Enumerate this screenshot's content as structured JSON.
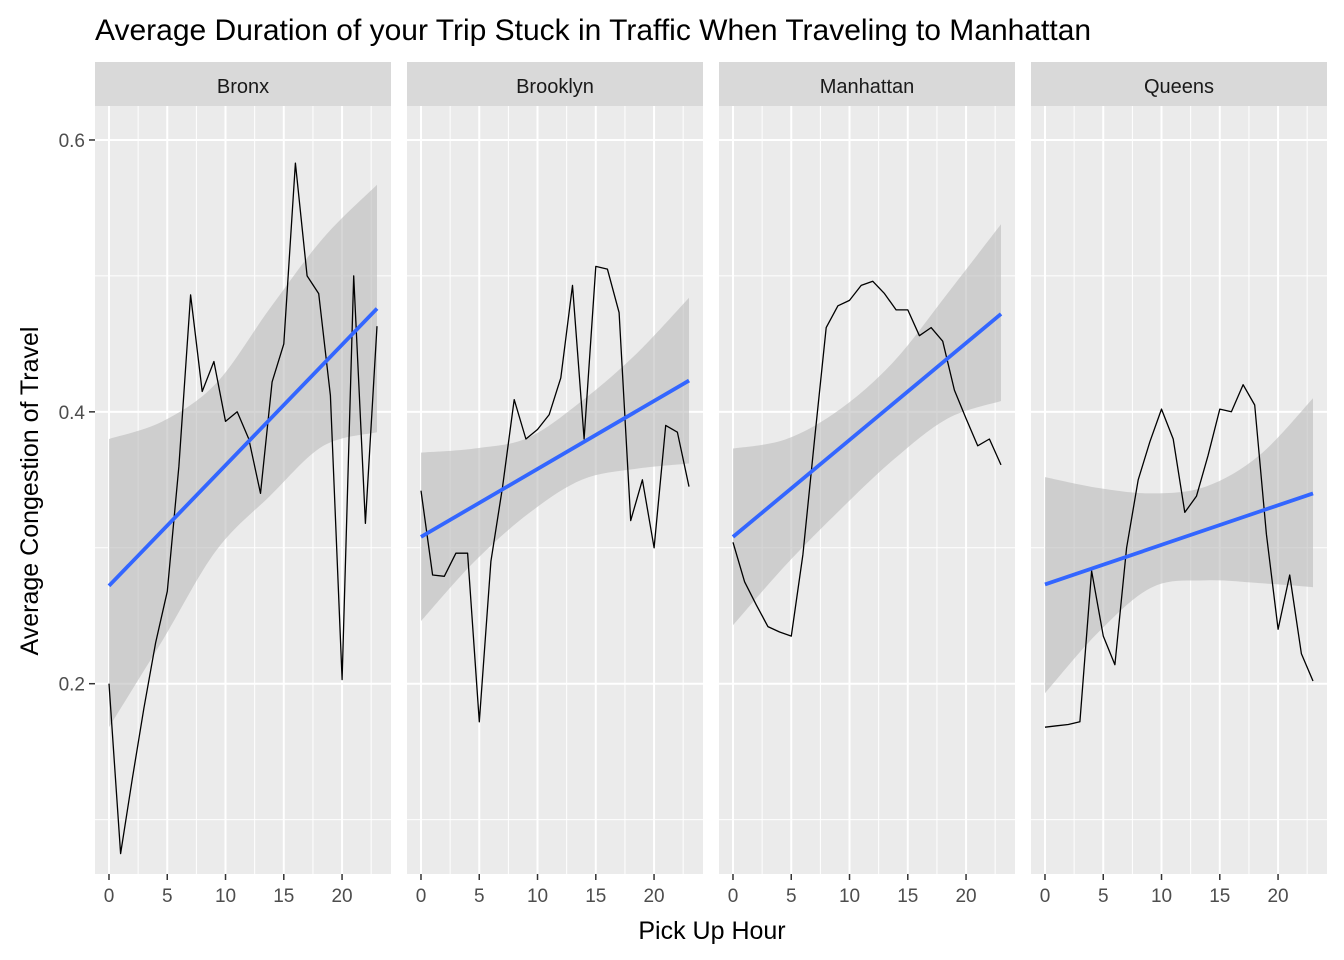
{
  "chart_data": {
    "type": "line",
    "title": "Average Duration of your Trip Stuck in Traffic When Traveling to Manhattan",
    "xlabel": "Pick Up Hour",
    "ylabel": "Average Congestion of Travel",
    "xlim": [
      -1.2,
      24.2
    ],
    "ylim": [
      0.06,
      0.625
    ],
    "x_ticks": [
      0,
      5,
      10,
      15,
      20
    ],
    "y_ticks": [
      0.2,
      0.4,
      0.6
    ],
    "y_tick_labels": [
      "0.2",
      "0.4",
      "0.6"
    ],
    "grid": true,
    "colors": {
      "panel_bg": "#ebebeb",
      "strip_bg": "#d9d9d9",
      "grid": "#ffffff",
      "line": "#000000",
      "smooth": "#3366ff",
      "ribbon": "#bdbdbd"
    },
    "panels": [
      {
        "name": "Bronx",
        "x": [
          0,
          1,
          2,
          3,
          4,
          5,
          6,
          7,
          8,
          9,
          10,
          11,
          12,
          13,
          14,
          15,
          16,
          17,
          18,
          19,
          20,
          21,
          22,
          23
        ],
        "y": [
          0.2,
          0.075,
          0.13,
          0.182,
          0.23,
          0.268,
          0.36,
          0.486,
          0.415,
          0.437,
          0.393,
          0.4,
          0.38,
          0.34,
          0.422,
          0.45,
          0.583,
          0.5,
          0.487,
          0.412,
          0.203,
          0.5,
          0.318,
          0.463
        ],
        "fit": {
          "start": 0.272,
          "end": 0.476
        },
        "ci_lower": [
          0.168,
          0.232,
          0.298,
          0.338,
          0.375,
          0.385
        ],
        "ci_upper": [
          0.38,
          0.393,
          0.421,
          0.476,
          0.528,
          0.567
        ]
      },
      {
        "name": "Brooklyn",
        "x": [
          0,
          1,
          2,
          3,
          4,
          5,
          6,
          7,
          8,
          9,
          10,
          11,
          12,
          13,
          14,
          15,
          16,
          17,
          18,
          19,
          20,
          21,
          22,
          23
        ],
        "y": [
          0.342,
          0.28,
          0.279,
          0.296,
          0.296,
          0.172,
          0.29,
          0.345,
          0.409,
          0.38,
          0.387,
          0.398,
          0.425,
          0.493,
          0.38,
          0.507,
          0.505,
          0.473,
          0.32,
          0.35,
          0.3,
          0.39,
          0.385,
          0.345
        ],
        "fit": {
          "start": 0.308,
          "end": 0.423
        },
        "ci_lower": [
          0.246,
          0.29,
          0.325,
          0.35,
          0.358,
          0.362
        ],
        "ci_upper": [
          0.37,
          0.373,
          0.381,
          0.408,
          0.442,
          0.484
        ]
      },
      {
        "name": "Manhattan",
        "x": [
          0,
          1,
          2,
          3,
          4,
          5,
          6,
          7,
          8,
          9,
          10,
          11,
          12,
          13,
          14,
          15,
          16,
          17,
          18,
          19,
          20,
          21,
          22,
          23
        ],
        "y": [
          0.304,
          0.275,
          0.258,
          0.242,
          0.238,
          0.235,
          0.295,
          0.38,
          0.462,
          0.478,
          0.482,
          0.493,
          0.496,
          0.487,
          0.475,
          0.475,
          0.456,
          0.462,
          0.452,
          0.416,
          0.395,
          0.375,
          0.38,
          0.361
        ],
        "fit": {
          "start": 0.308,
          "end": 0.472
        },
        "ci_lower": [
          0.243,
          0.288,
          0.328,
          0.365,
          0.395,
          0.408
        ],
        "ci_upper": [
          0.373,
          0.38,
          0.402,
          0.437,
          0.487,
          0.538
        ]
      },
      {
        "name": "Queens",
        "x": [
          0,
          1,
          2,
          3,
          4,
          5,
          6,
          7,
          8,
          9,
          10,
          11,
          12,
          13,
          14,
          15,
          16,
          17,
          18,
          19,
          20,
          21,
          22,
          23
        ],
        "y": [
          0.168,
          0.169,
          0.17,
          0.172,
          0.283,
          0.235,
          0.214,
          0.3,
          0.35,
          0.378,
          0.402,
          0.38,
          0.326,
          0.338,
          0.368,
          0.402,
          0.4,
          0.42,
          0.405,
          0.31,
          0.24,
          0.28,
          0.222,
          0.202
        ],
        "fit": {
          "start": 0.273,
          "end": 0.34
        },
        "ci_lower": [
          0.193,
          0.238,
          0.271,
          0.276,
          0.274,
          0.271
        ],
        "ci_upper": [
          0.352,
          0.344,
          0.34,
          0.345,
          0.368,
          0.41
        ]
      }
    ]
  }
}
